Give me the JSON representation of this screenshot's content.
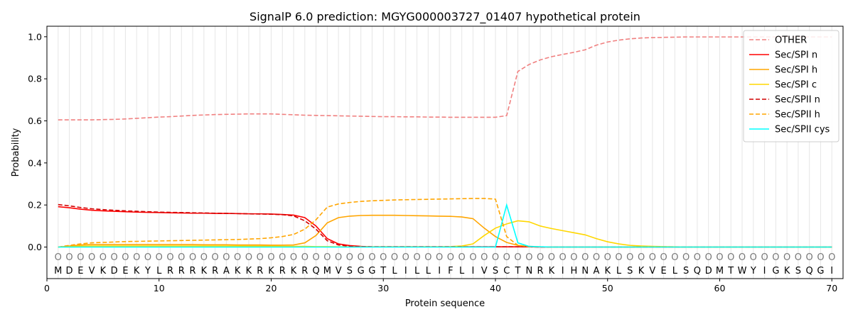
{
  "chart_data": {
    "type": "line",
    "title": "SignalP 6.0 prediction: MGYG000003727_01407 hypothetical protein",
    "xlabel": "Protein sequence",
    "ylabel": "Probability",
    "xlim": [
      0,
      71
    ],
    "ylim": [
      -0.15,
      1.05
    ],
    "x_ticks": [
      0,
      10,
      20,
      30,
      40,
      50,
      60,
      70
    ],
    "y_ticks": [
      0.0,
      0.2,
      0.4,
      0.6,
      0.8,
      1.0
    ],
    "x_tick_labels": [
      "0",
      "10",
      "20",
      "30",
      "40",
      "50",
      "60",
      "70"
    ],
    "y_tick_labels": [
      "0.0",
      "0.2",
      "0.4",
      "0.6",
      "0.8",
      "1.0"
    ],
    "grid": "vertical lines at each residue",
    "legend_position": "top-right",
    "residues": [
      "M",
      "D",
      "E",
      "V",
      "K",
      "D",
      "E",
      "K",
      "Y",
      "L",
      "R",
      "R",
      "R",
      "K",
      "R",
      "A",
      "K",
      "K",
      "R",
      "K",
      "R",
      "K",
      "R",
      "Q",
      "M",
      "V",
      "S",
      "G",
      "G",
      "T",
      "L",
      "I",
      "L",
      "L",
      "I",
      "F",
      "L",
      "I",
      "V",
      "S",
      "C",
      "T",
      "N",
      "R",
      "K",
      "I",
      "H",
      "N",
      "A",
      "K",
      "L",
      "S",
      "K",
      "V",
      "E",
      "L",
      "S",
      "Q",
      "D",
      "M",
      "T",
      "W",
      "Y",
      "I",
      "G",
      "K",
      "S",
      "Q",
      "G",
      "I"
    ],
    "region_labels": [
      "O",
      "O",
      "O",
      "O",
      "O",
      "O",
      "O",
      "O",
      "O",
      "O",
      "O",
      "O",
      "O",
      "O",
      "O",
      "O",
      "O",
      "O",
      "O",
      "O",
      "O",
      "O",
      "O",
      "O",
      "O",
      "O",
      "O",
      "O",
      "O",
      "O",
      "O",
      "O",
      "O",
      "O",
      "O",
      "O",
      "O",
      "O",
      "O",
      "O",
      "O",
      "O",
      "O",
      "O",
      "O",
      "O",
      "O",
      "O",
      "O",
      "O",
      "O",
      "O",
      "O",
      "O",
      "O",
      "O",
      "O",
      "O",
      "O",
      "O",
      "O",
      "O",
      "O",
      "O",
      "O",
      "O",
      "O",
      "O",
      "O",
      "O"
    ],
    "series": [
      {
        "name": "OTHER",
        "color": "#f08080",
        "dash": "dashed",
        "values": [
          0.605,
          0.605,
          0.605,
          0.605,
          0.606,
          0.607,
          0.609,
          0.612,
          0.615,
          0.618,
          0.62,
          0.623,
          0.626,
          0.628,
          0.63,
          0.631,
          0.632,
          0.633,
          0.633,
          0.633,
          0.631,
          0.629,
          0.627,
          0.626,
          0.625,
          0.624,
          0.623,
          0.622,
          0.621,
          0.62,
          0.62,
          0.619,
          0.619,
          0.618,
          0.618,
          0.617,
          0.617,
          0.617,
          0.617,
          0.617,
          0.625,
          0.835,
          0.868,
          0.89,
          0.905,
          0.916,
          0.926,
          0.938,
          0.96,
          0.975,
          0.984,
          0.99,
          0.994,
          0.996,
          0.997,
          0.998,
          0.999,
          0.999,
          0.999,
          0.999,
          0.999,
          0.999,
          0.999,
          0.999,
          0.999,
          0.999,
          0.999,
          0.999,
          0.999,
          0.999
        ]
      },
      {
        "name": "Sec/SPI n",
        "color": "#ff0000",
        "dash": "solid",
        "values": [
          0.192,
          0.187,
          0.18,
          0.175,
          0.172,
          0.17,
          0.168,
          0.166,
          0.165,
          0.164,
          0.163,
          0.162,
          0.161,
          0.161,
          0.16,
          0.16,
          0.159,
          0.158,
          0.158,
          0.157,
          0.155,
          0.152,
          0.14,
          0.1,
          0.04,
          0.015,
          0.007,
          0.003,
          0.001,
          0.001,
          0.001,
          0.001,
          0.001,
          0.001,
          0.001,
          0.001,
          0.001,
          0.001,
          0.001,
          0.001,
          0.001,
          0.001,
          0.001,
          0.0,
          0.0,
          0.0,
          0.0,
          0.0,
          0.0,
          0.0,
          0.0,
          0.0,
          0.0,
          0.0,
          0.0,
          0.0,
          0.0,
          0.0,
          0.0,
          0.0,
          0.0,
          0.0,
          0.0,
          0.0,
          0.0,
          0.0,
          0.0,
          0.0,
          0.0,
          0.0
        ]
      },
      {
        "name": "Sec/SPI h",
        "color": "#ffa500",
        "dash": "solid",
        "values": [
          0.0,
          0.005,
          0.01,
          0.012,
          0.012,
          0.012,
          0.012,
          0.012,
          0.012,
          0.012,
          0.012,
          0.012,
          0.012,
          0.011,
          0.011,
          0.011,
          0.01,
          0.01,
          0.01,
          0.009,
          0.009,
          0.01,
          0.02,
          0.055,
          0.115,
          0.14,
          0.147,
          0.15,
          0.151,
          0.151,
          0.151,
          0.15,
          0.149,
          0.148,
          0.147,
          0.146,
          0.143,
          0.135,
          0.09,
          0.05,
          0.022,
          0.008,
          0.003,
          0.001,
          0.0,
          0.0,
          0.0,
          0.0,
          0.0,
          0.0,
          0.0,
          0.0,
          0.0,
          0.0,
          0.0,
          0.0,
          0.0,
          0.0,
          0.0,
          0.0,
          0.0,
          0.0,
          0.0,
          0.0,
          0.0,
          0.0,
          0.0,
          0.0,
          0.0,
          0.0
        ]
      },
      {
        "name": "Sec/SPI c",
        "color": "#ffd700",
        "dash": "solid",
        "values": [
          0.0,
          0.002,
          0.004,
          0.005,
          0.005,
          0.005,
          0.005,
          0.005,
          0.005,
          0.005,
          0.005,
          0.005,
          0.005,
          0.005,
          0.005,
          0.005,
          0.005,
          0.004,
          0.004,
          0.004,
          0.003,
          0.003,
          0.003,
          0.002,
          0.002,
          0.001,
          0.001,
          0.001,
          0.001,
          0.001,
          0.001,
          0.001,
          0.001,
          0.001,
          0.001,
          0.002,
          0.005,
          0.015,
          0.055,
          0.09,
          0.11,
          0.125,
          0.12,
          0.1,
          0.088,
          0.078,
          0.068,
          0.058,
          0.04,
          0.025,
          0.015,
          0.008,
          0.005,
          0.003,
          0.002,
          0.001,
          0.0,
          0.0,
          0.0,
          0.0,
          0.0,
          0.0,
          0.0,
          0.0,
          0.0,
          0.0,
          0.0,
          0.0,
          0.0,
          0.0
        ]
      },
      {
        "name": "Sec/SPII n",
        "color": "#d00000",
        "dash": "dashed",
        "values": [
          0.202,
          0.196,
          0.188,
          0.182,
          0.178,
          0.175,
          0.172,
          0.17,
          0.168,
          0.166,
          0.165,
          0.164,
          0.163,
          0.162,
          0.161,
          0.16,
          0.159,
          0.158,
          0.157,
          0.156,
          0.154,
          0.148,
          0.125,
          0.085,
          0.03,
          0.01,
          0.004,
          0.002,
          0.001,
          0.001,
          0.001,
          0.001,
          0.001,
          0.001,
          0.001,
          0.001,
          0.001,
          0.001,
          0.001,
          0.001,
          0.001,
          0.001,
          0.001,
          0.0,
          0.0,
          0.0,
          0.0,
          0.0,
          0.0,
          0.0,
          0.0,
          0.0,
          0.0,
          0.0,
          0.0,
          0.0,
          0.0,
          0.0,
          0.0,
          0.0,
          0.0,
          0.0,
          0.0,
          0.0,
          0.0,
          0.0,
          0.0,
          0.0,
          0.0,
          0.0
        ]
      },
      {
        "name": "Sec/SPII h",
        "color": "#ffa500",
        "dash": "dashed",
        "values": [
          0.0,
          0.008,
          0.015,
          0.02,
          0.022,
          0.024,
          0.026,
          0.027,
          0.028,
          0.029,
          0.03,
          0.031,
          0.032,
          0.033,
          0.034,
          0.035,
          0.036,
          0.038,
          0.04,
          0.044,
          0.05,
          0.06,
          0.085,
          0.13,
          0.19,
          0.205,
          0.212,
          0.217,
          0.22,
          0.222,
          0.224,
          0.225,
          0.226,
          0.227,
          0.228,
          0.229,
          0.23,
          0.231,
          0.231,
          0.228,
          0.05,
          0.008,
          0.002,
          0.001,
          0.0,
          0.0,
          0.0,
          0.0,
          0.0,
          0.0,
          0.0,
          0.0,
          0.0,
          0.0,
          0.0,
          0.0,
          0.0,
          0.0,
          0.0,
          0.0,
          0.0,
          0.0,
          0.0,
          0.0,
          0.0,
          0.0,
          0.0,
          0.0,
          0.0,
          0.0
        ]
      },
      {
        "name": "Sec/SPII cys",
        "color": "#00ffff",
        "dash": "solid",
        "values": [
          0.0,
          0.0,
          0.0,
          0.0,
          0.0,
          0.0,
          0.0,
          0.0,
          0.0,
          0.0,
          0.0,
          0.0,
          0.0,
          0.0,
          0.0,
          0.0,
          0.0,
          0.0,
          0.0,
          0.0,
          0.0,
          0.0,
          0.0,
          0.0,
          0.0,
          0.0,
          0.0,
          0.0,
          0.0,
          0.0,
          0.0,
          0.0,
          0.0,
          0.0,
          0.0,
          0.0,
          0.0,
          0.0,
          0.0,
          0.0,
          0.2,
          0.02,
          0.003,
          0.001,
          0.0,
          0.0,
          0.0,
          0.0,
          0.0,
          0.0,
          0.0,
          0.0,
          0.0,
          0.0,
          0.0,
          0.0,
          0.0,
          0.0,
          0.0,
          0.0,
          0.0,
          0.0,
          0.0,
          0.0,
          0.0,
          0.0,
          0.0,
          0.0,
          0.0,
          0.0
        ]
      }
    ]
  }
}
